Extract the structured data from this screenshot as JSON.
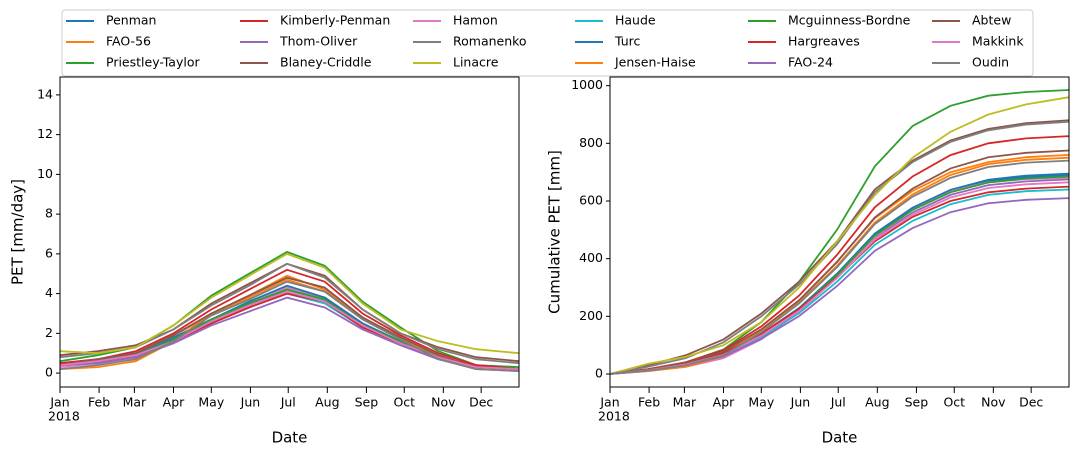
{
  "chart_data": [
    {
      "type": "line",
      "xlabel": "Date",
      "x_sublabel": "2018",
      "ylabel": "PET [mm/day]",
      "x": [
        0,
        30,
        60,
        90,
        120,
        150,
        180,
        210,
        240,
        270,
        300,
        330,
        364
      ],
      "xlim": [
        0,
        364
      ],
      "xticks": [
        {
          "value": 0,
          "label": "Jan"
        },
        {
          "value": 31,
          "label": "Feb"
        },
        {
          "value": 59,
          "label": "Mar"
        },
        {
          "value": 90,
          "label": "Apr"
        },
        {
          "value": 120,
          "label": "May"
        },
        {
          "value": 151,
          "label": "Jun"
        },
        {
          "value": 181,
          "label": "Jul"
        },
        {
          "value": 212,
          "label": "Aug"
        },
        {
          "value": 243,
          "label": "Sep"
        },
        {
          "value": 273,
          "label": "Oct"
        },
        {
          "value": 304,
          "label": "Nov"
        },
        {
          "value": 334,
          "label": "Dec"
        }
      ],
      "ylim": [
        -0.7,
        14.9
      ],
      "yticks": [
        0,
        2,
        4,
        6,
        8,
        10,
        12,
        14
      ],
      "series": [
        {
          "name": "Penman",
          "color": "#1f77b4",
          "values": [
            0.4,
            0.6,
            0.9,
            1.7,
            2.7,
            3.5,
            4.3,
            3.8,
            2.5,
            1.6,
            0.8,
            0.3,
            0.2
          ]
        },
        {
          "name": "FAO-56",
          "color": "#ff7f0e",
          "values": [
            0.4,
            0.7,
            1.0,
            1.9,
            2.9,
            3.8,
            4.7,
            4.1,
            2.7,
            1.7,
            0.9,
            0.3,
            0.2
          ]
        },
        {
          "name": "Priestley-Taylor",
          "color": "#2ca02c",
          "values": [
            0.6,
            0.9,
            1.3,
            2.4,
            3.9,
            5.0,
            6.1,
            5.4,
            3.6,
            2.3,
            1.1,
            0.4,
            0.3
          ]
        },
        {
          "name": "Kimberly-Penman",
          "color": "#d62728",
          "values": [
            0.5,
            0.7,
            1.1,
            2.0,
            3.2,
            4.2,
            5.2,
            4.6,
            3.0,
            1.9,
            1.0,
            0.4,
            0.2
          ]
        },
        {
          "name": "Thom-Oliver",
          "color": "#9467bd",
          "values": [
            0.4,
            0.6,
            0.9,
            1.7,
            2.6,
            3.4,
            4.2,
            3.7,
            2.5,
            1.6,
            0.8,
            0.3,
            0.2
          ]
        },
        {
          "name": "Blaney-Criddle",
          "color": "#8c564b",
          "values": [
            0.9,
            1.1,
            1.4,
            2.2,
            3.5,
            4.5,
            5.5,
            4.9,
            3.2,
            2.0,
            1.3,
            0.8,
            0.6
          ]
        },
        {
          "name": "Hamon",
          "color": "#e377c2",
          "values": [
            0.3,
            0.5,
            0.8,
            1.7,
            2.7,
            3.5,
            4.3,
            3.8,
            2.5,
            1.6,
            0.8,
            0.3,
            0.2
          ]
        },
        {
          "name": "Romanenko",
          "color": "#7f7f7f",
          "values": [
            0.8,
            1.0,
            1.3,
            2.2,
            3.4,
            4.4,
            5.5,
            4.8,
            3.2,
            2.0,
            1.2,
            0.7,
            0.5
          ]
        },
        {
          "name": "Linacre",
          "color": "#bcbd22",
          "values": [
            1.1,
            1.0,
            1.3,
            2.4,
            3.8,
            4.9,
            6.0,
            5.3,
            3.5,
            2.2,
            1.6,
            1.2,
            1.0
          ]
        },
        {
          "name": "Haude",
          "color": "#17becf",
          "values": [
            0.4,
            0.6,
            0.8,
            1.6,
            2.5,
            3.3,
            4.0,
            3.5,
            2.3,
            1.5,
            0.7,
            0.3,
            0.2
          ]
        },
        {
          "name": "Turc",
          "color": "#1f77b4",
          "values": [
            0.4,
            0.6,
            0.9,
            1.8,
            2.7,
            3.6,
            4.4,
            3.8,
            2.5,
            1.6,
            0.8,
            0.3,
            0.2
          ]
        },
        {
          "name": "Jensen-Haise",
          "color": "#ff7f0e",
          "values": [
            0.2,
            0.3,
            0.6,
            1.6,
            3.0,
            3.9,
            4.9,
            4.2,
            2.8,
            1.7,
            0.7,
            0.2,
            0.1
          ]
        },
        {
          "name": "Mcguinness-Bordne",
          "color": "#2ca02c",
          "values": [
            0.4,
            0.6,
            0.9,
            1.7,
            2.7,
            3.5,
            4.2,
            3.7,
            2.4,
            1.6,
            0.8,
            0.3,
            0.2
          ]
        },
        {
          "name": "Hargreaves",
          "color": "#d62728",
          "values": [
            0.5,
            0.6,
            0.8,
            1.6,
            2.5,
            3.3,
            4.0,
            3.6,
            2.3,
            1.5,
            0.8,
            0.4,
            0.2
          ]
        },
        {
          "name": "FAO-24",
          "color": "#9467bd",
          "values": [
            0.4,
            0.5,
            0.8,
            1.5,
            2.4,
            3.1,
            3.8,
            3.3,
            2.2,
            1.4,
            0.7,
            0.3,
            0.2
          ]
        },
        {
          "name": "Abtew",
          "color": "#8c564b",
          "values": [
            0.4,
            0.7,
            1.0,
            1.9,
            3.0,
            3.9,
            4.8,
            4.3,
            2.8,
            1.8,
            0.9,
            0.3,
            0.2
          ]
        },
        {
          "name": "Makkink",
          "color": "#e377c2",
          "values": [
            0.4,
            0.6,
            0.9,
            1.6,
            2.6,
            3.4,
            4.1,
            3.6,
            2.4,
            1.5,
            0.8,
            0.3,
            0.2
          ]
        },
        {
          "name": "Oudin",
          "color": "#7f7f7f",
          "values": [
            0.2,
            0.4,
            0.7,
            1.6,
            2.9,
            3.7,
            4.6,
            4.1,
            2.7,
            1.7,
            0.7,
            0.2,
            0.1
          ]
        }
      ]
    },
    {
      "type": "line",
      "xlabel": "Date",
      "x_sublabel": "2018",
      "ylabel": "Cumulative PET [mm]",
      "x": [
        0,
        30,
        60,
        90,
        120,
        150,
        180,
        210,
        240,
        270,
        300,
        330,
        364
      ],
      "xlim": [
        0,
        364
      ],
      "xticks": [
        {
          "value": 0,
          "label": "Jan"
        },
        {
          "value": 31,
          "label": "Feb"
        },
        {
          "value": 59,
          "label": "Mar"
        },
        {
          "value": 90,
          "label": "Apr"
        },
        {
          "value": 120,
          "label": "May"
        },
        {
          "value": 151,
          "label": "Jun"
        },
        {
          "value": 181,
          "label": "Jul"
        },
        {
          "value": 212,
          "label": "Aug"
        },
        {
          "value": 243,
          "label": "Sep"
        },
        {
          "value": 273,
          "label": "Oct"
        },
        {
          "value": 304,
          "label": "Nov"
        },
        {
          "value": 334,
          "label": "Dec"
        }
      ],
      "ylim": [
        -45,
        1030
      ],
      "yticks": [
        0,
        200,
        400,
        600,
        800,
        1000
      ],
      "series": [
        {
          "color": "#1f77b4",
          "values": [
            0,
            14,
            35,
            69,
            138,
            228,
            345,
            483,
            573,
            635,
            669,
            683,
            690
          ]
        },
        {
          "color": "#ff7f0e",
          "values": [
            0,
            15,
            38,
            75,
            150,
            248,
            375,
            525,
            623,
            690,
            728,
            743,
            750
          ]
        },
        {
          "color": "#2ca02c",
          "values": [
            0,
            15,
            40,
            85,
            180,
            320,
            500,
            720,
            860,
            930,
            965,
            978,
            985
          ]
        },
        {
          "color": "#d62728",
          "values": [
            0,
            17,
            41,
            83,
            165,
            272,
            413,
            578,
            685,
            759,
            800,
            817,
            825
          ]
        },
        {
          "color": "#9467bd",
          "values": [
            0,
            14,
            34,
            68,
            135,
            223,
            338,
            473,
            560,
            621,
            655,
            668,
            675
          ]
        },
        {
          "color": "#8c564b",
          "values": [
            0,
            30,
            65,
            120,
            210,
            320,
            460,
            640,
            740,
            810,
            850,
            870,
            880
          ]
        },
        {
          "color": "#e377c2",
          "values": [
            0,
            10,
            25,
            55,
            120,
            215,
            335,
            475,
            570,
            635,
            665,
            676,
            680
          ]
        },
        {
          "color": "#7f7f7f",
          "values": [
            0,
            25,
            55,
            110,
            200,
            310,
            450,
            630,
            735,
            805,
            845,
            865,
            875
          ]
        },
        {
          "color": "#bcbd22",
          "values": [
            0,
            35,
            60,
            100,
            180,
            300,
            460,
            620,
            750,
            840,
            900,
            935,
            960
          ]
        },
        {
          "color": "#17becf",
          "values": [
            0,
            13,
            32,
            64,
            128,
            211,
            320,
            448,
            531,
            589,
            621,
            634,
            640
          ]
        },
        {
          "color": "#1f77b4",
          "values": [
            0,
            14,
            35,
            70,
            139,
            229,
            348,
            487,
            577,
            639,
            674,
            688,
            695
          ]
        },
        {
          "color": "#ff7f0e",
          "values": [
            0,
            10,
            25,
            60,
            150,
            255,
            390,
            540,
            635,
            700,
            735,
            752,
            760
          ]
        },
        {
          "color": "#2ca02c",
          "values": [
            0,
            14,
            34,
            69,
            137,
            226,
            343,
            480,
            569,
            630,
            664,
            678,
            685
          ]
        },
        {
          "color": "#d62728",
          "values": [
            0,
            16,
            38,
            72,
            140,
            225,
            335,
            460,
            545,
            600,
            630,
            643,
            650
          ]
        },
        {
          "color": "#9467bd",
          "values": [
            0,
            12,
            31,
            61,
            122,
            201,
            305,
            427,
            506,
            561,
            592,
            604,
            610
          ]
        },
        {
          "color": "#8c564b",
          "values": [
            0,
            16,
            39,
            78,
            155,
            256,
            388,
            543,
            643,
            713,
            752,
            767,
            775
          ]
        },
        {
          "color": "#e377c2",
          "values": [
            0,
            13,
            33,
            67,
            133,
            219,
            333,
            466,
            552,
            612,
            645,
            658,
            665
          ]
        },
        {
          "color": "#7f7f7f",
          "values": [
            0,
            12,
            30,
            65,
            145,
            245,
            370,
            520,
            615,
            680,
            718,
            733,
            740
          ]
        }
      ]
    }
  ]
}
